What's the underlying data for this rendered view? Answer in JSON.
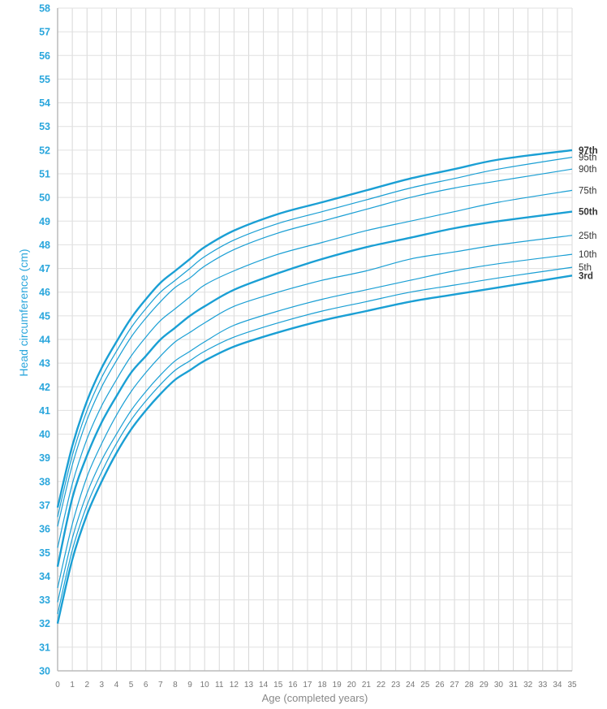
{
  "chart_data": {
    "type": "line",
    "title": "",
    "xlabel": "Age (completed years)",
    "ylabel": "Head circumference (cm)",
    "xlim": [
      0,
      35
    ],
    "ylim": [
      30,
      58
    ],
    "x_ticks": [
      0,
      1,
      2,
      3,
      4,
      5,
      6,
      7,
      8,
      9,
      10,
      11,
      12,
      13,
      14,
      15,
      16,
      17,
      18,
      19,
      20,
      21,
      22,
      23,
      24,
      25,
      26,
      27,
      28,
      29,
      30,
      31,
      32,
      33,
      34,
      35
    ],
    "y_ticks": [
      30,
      31,
      32,
      33,
      34,
      35,
      36,
      37,
      38,
      39,
      40,
      41,
      42,
      43,
      44,
      45,
      46,
      47,
      48,
      49,
      50,
      51,
      52,
      53,
      54,
      55,
      56,
      57,
      58
    ],
    "grid": true,
    "line_color": "#1a9fd4",
    "x": [
      0,
      1,
      2,
      3,
      4,
      5,
      6,
      7,
      8,
      9,
      10,
      12,
      15,
      18,
      21,
      24,
      27,
      30,
      35
    ],
    "series": [
      {
        "name": "97th",
        "bold": true,
        "values": [
          36.9,
          39.5,
          41.4,
          42.8,
          43.9,
          44.9,
          45.7,
          46.4,
          46.9,
          47.4,
          47.9,
          48.6,
          49.3,
          49.8,
          50.3,
          50.8,
          51.2,
          51.6,
          52.0
        ]
      },
      {
        "name": "95th",
        "bold": false,
        "values": [
          36.5,
          39.1,
          41.0,
          42.4,
          43.5,
          44.5,
          45.3,
          46.0,
          46.5,
          47.0,
          47.5,
          48.2,
          48.9,
          49.4,
          49.9,
          50.4,
          50.8,
          51.2,
          51.7
        ]
      },
      {
        "name": "90th",
        "bold": false,
        "values": [
          36.1,
          38.7,
          40.6,
          42.0,
          43.1,
          44.1,
          44.9,
          45.6,
          46.2,
          46.6,
          47.1,
          47.8,
          48.5,
          49.0,
          49.5,
          50.0,
          50.4,
          50.7,
          51.2
        ]
      },
      {
        "name": "75th",
        "bold": false,
        "values": [
          35.2,
          37.9,
          39.8,
          41.2,
          42.3,
          43.3,
          44.1,
          44.8,
          45.3,
          45.8,
          46.3,
          46.9,
          47.6,
          48.1,
          48.6,
          49.0,
          49.4,
          49.8,
          50.3
        ]
      },
      {
        "name": "50th",
        "bold": true,
        "values": [
          34.4,
          37.3,
          39.1,
          40.5,
          41.6,
          42.6,
          43.3,
          44.0,
          44.5,
          45.0,
          45.4,
          46.1,
          46.8,
          47.4,
          47.9,
          48.3,
          48.7,
          49.0,
          49.4
        ]
      },
      {
        "name": "25th",
        "bold": false,
        "values": [
          33.5,
          36.2,
          38.2,
          39.6,
          40.8,
          41.8,
          42.6,
          43.3,
          43.9,
          44.3,
          44.7,
          45.4,
          46.0,
          46.5,
          46.9,
          47.4,
          47.7,
          48.0,
          48.4
        ]
      },
      {
        "name": "10th",
        "bold": false,
        "values": [
          32.9,
          35.6,
          37.5,
          38.9,
          40.0,
          41.0,
          41.8,
          42.5,
          43.1,
          43.5,
          43.9,
          44.6,
          45.2,
          45.7,
          46.1,
          46.5,
          46.9,
          47.2,
          47.6
        ]
      },
      {
        "name": "5th",
        "bold": false,
        "values": [
          32.4,
          35.1,
          37.0,
          38.4,
          39.6,
          40.6,
          41.4,
          42.1,
          42.7,
          43.1,
          43.5,
          44.1,
          44.7,
          45.2,
          45.6,
          46.0,
          46.3,
          46.6,
          47.05
        ]
      },
      {
        "name": "3rd",
        "bold": true,
        "values": [
          32.0,
          34.7,
          36.6,
          38.0,
          39.2,
          40.2,
          41.0,
          41.7,
          42.3,
          42.7,
          43.1,
          43.7,
          44.3,
          44.8,
          45.2,
          45.6,
          45.9,
          46.2,
          46.7
        ]
      }
    ]
  }
}
